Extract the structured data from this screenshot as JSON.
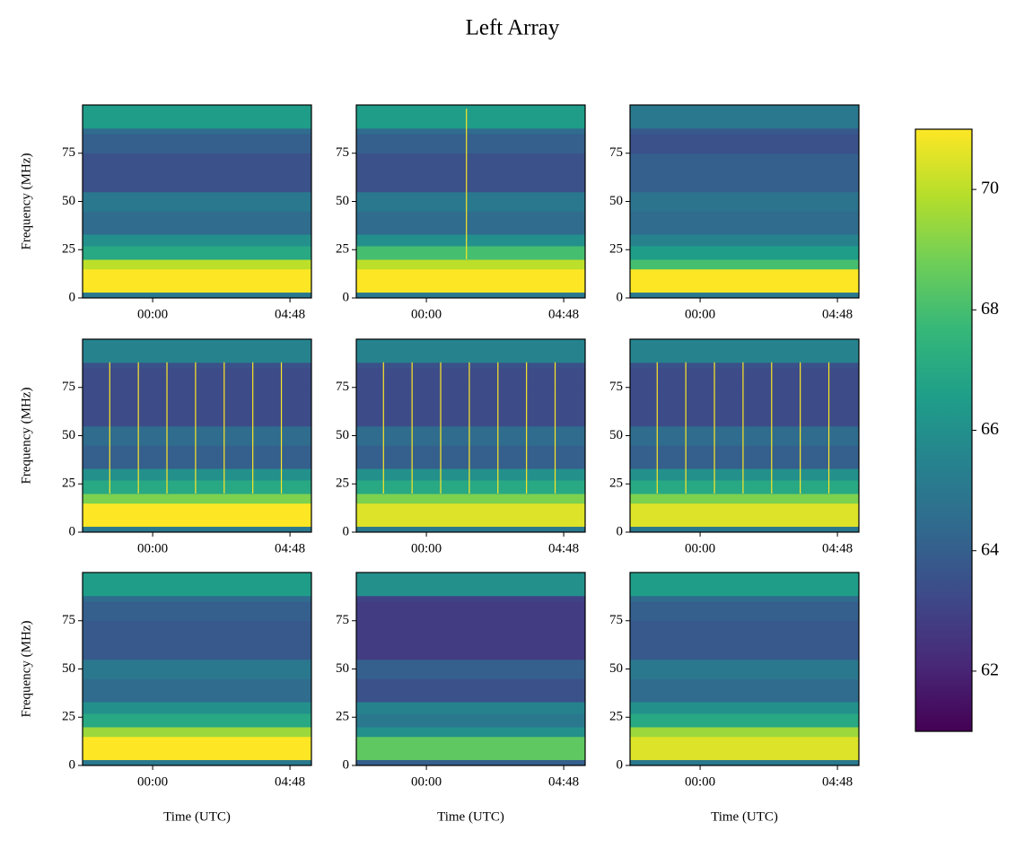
{
  "chart_data": {
    "type": "spectrogram-grid",
    "title": "Left Array",
    "xlabel": "Time (UTC)",
    "ylabel": "Frequency (MHz)",
    "xlim": [
      -2.45,
      5.55
    ],
    "xticks": [
      {
        "value": 0,
        "label": "00:00"
      },
      {
        "value": 4.8,
        "label": "04:48"
      }
    ],
    "ylim": [
      0,
      100
    ],
    "yticks": [
      0,
      25,
      50,
      75
    ],
    "freq_edges": [
      0,
      3,
      15,
      20,
      27,
      33,
      45,
      55,
      75,
      85,
      88,
      100
    ],
    "colormap": "viridis",
    "clim": [
      61,
      71
    ],
    "cticks": [
      62,
      64,
      66,
      68,
      70
    ],
    "panels": [
      {
        "values": [
          65,
          71,
          70,
          67,
          66,
          64.5,
          65,
          63.5,
          64,
          64.5,
          66.5
        ]
      },
      {
        "values": [
          65,
          71,
          70,
          68,
          66,
          64.5,
          65,
          63.5,
          64,
          64.5,
          66.5
        ],
        "spikes": [
          1.4
        ],
        "spike_band": [
          20,
          98
        ]
      },
      {
        "values": [
          65,
          71,
          68,
          66.5,
          65.5,
          64.5,
          64.8,
          64,
          63.5,
          63.8,
          65
        ]
      },
      {
        "values": [
          65,
          71,
          69,
          67,
          66,
          64,
          64.5,
          63.3,
          63.3,
          63.5,
          65.5
        ],
        "spikes": [
          -1.5,
          -0.5,
          0.5,
          1.5,
          2.5,
          3.5,
          4.5
        ],
        "spike_band": [
          20,
          88
        ]
      },
      {
        "values": [
          65,
          70.5,
          69,
          67,
          66,
          64,
          64.5,
          63.3,
          63.3,
          63.5,
          65.5
        ],
        "spikes": [
          -1.5,
          -0.5,
          0.5,
          1.5,
          2.5,
          3.5,
          4.5
        ],
        "spike_band": [
          20,
          88
        ]
      },
      {
        "values": [
          65,
          70.5,
          69,
          67,
          66,
          64,
          64.5,
          63.3,
          63.3,
          63.5,
          65.5
        ],
        "spikes": [
          -1.5,
          -0.5,
          0.5,
          1.5,
          2.5,
          3.5,
          4.5
        ],
        "spike_band": [
          20,
          88
        ]
      },
      {
        "values": [
          65,
          71,
          69.5,
          67,
          66,
          64.5,
          65,
          63.8,
          64,
          64.5,
          66.5
        ]
      },
      {
        "values": [
          64,
          68.5,
          66,
          65,
          65.5,
          63.5,
          64,
          62.8,
          62.8,
          63,
          66
        ]
      },
      {
        "values": [
          65,
          70.5,
          69.5,
          67,
          66,
          64.5,
          65,
          63.8,
          64,
          64.5,
          66.5
        ]
      }
    ]
  }
}
